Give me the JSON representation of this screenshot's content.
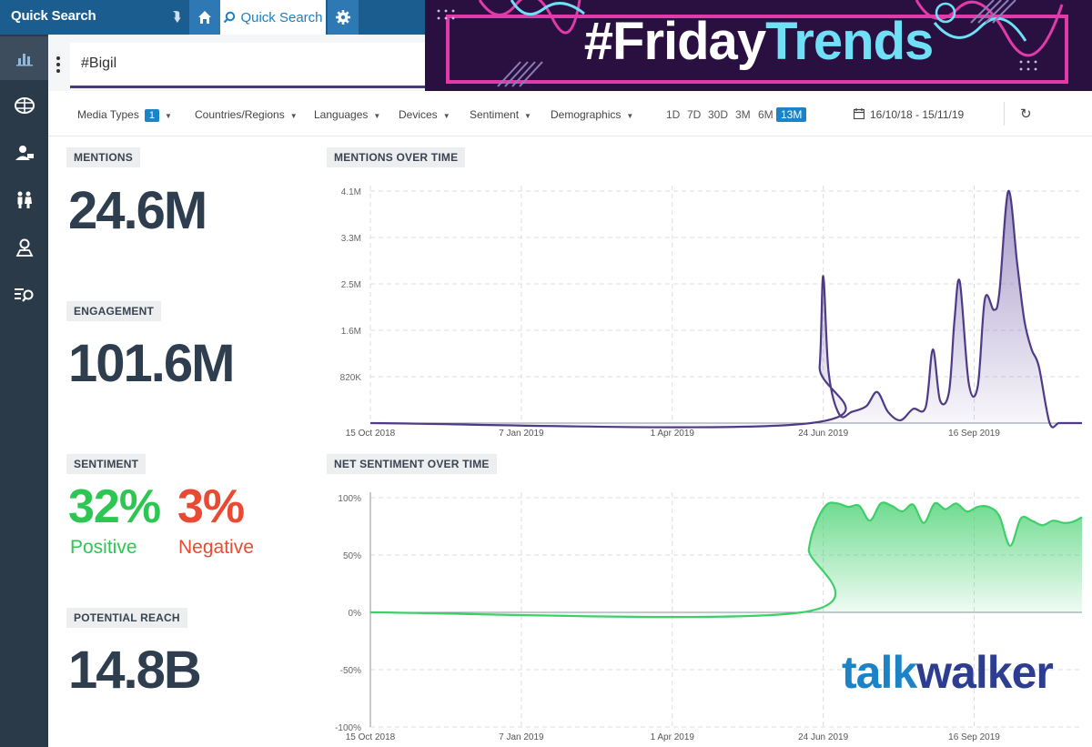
{
  "topbar": {
    "title": "Quick Search",
    "tab_quick_search": "Quick Search"
  },
  "search": {
    "query": "#Bigil"
  },
  "banner": {
    "hash": "#",
    "word1": "Friday",
    "word2": "Trends"
  },
  "filters": {
    "media_types": "Media Types",
    "media_types_count": "1",
    "countries": "Countries/Regions",
    "languages": "Languages",
    "devices": "Devices",
    "sentiment": "Sentiment",
    "demographics": "Demographics",
    "ranges": [
      "1D",
      "7D",
      "30D",
      "3M",
      "6M",
      "13M"
    ],
    "active_range": "13M",
    "date_range": "16/10/18 - 15/11/19"
  },
  "kpis": {
    "mentions_label": "MENTIONS",
    "mentions_value": "24.6M",
    "engagement_label": "ENGAGEMENT",
    "engagement_value": "101.6M",
    "sentiment_label": "SENTIMENT",
    "positive_value": "32%",
    "positive_label": "Positive",
    "negative_value": "3%",
    "negative_label": "Negative",
    "reach_label": "POTENTIAL REACH",
    "reach_value": "14.8B"
  },
  "colors": {
    "mentions_line": "#4e3a85",
    "sentiment_line": "#3fcf6a",
    "positive": "#2dc653",
    "negative": "#e84a33"
  },
  "chart_data": [
    {
      "type": "area",
      "title": "MENTIONS OVER TIME",
      "x_ticks": [
        "15 Oct 2018",
        "7 Jan 2019",
        "1 Apr 2019",
        "24 Jun 2019",
        "16 Sep 2019"
      ],
      "y_ticks": [
        "820K",
        "1.6M",
        "2.5M",
        "3.3M",
        "4.1M"
      ],
      "ylim": [
        0,
        4100000
      ],
      "x": [
        "2018-10-15",
        "2019-06-17",
        "2019-06-22",
        "2019-06-24",
        "2019-06-27",
        "2019-07-03",
        "2019-07-10",
        "2019-07-18",
        "2019-07-24",
        "2019-07-30",
        "2019-08-06",
        "2019-08-13",
        "2019-08-20",
        "2019-08-24",
        "2019-08-28",
        "2019-09-02",
        "2019-09-05",
        "2019-09-08",
        "2019-09-13",
        "2019-09-18",
        "2019-09-22",
        "2019-09-27",
        "2019-09-30",
        "2019-10-05",
        "2019-10-10",
        "2019-10-14",
        "2019-10-18",
        "2019-10-22",
        "2019-10-28",
        "2019-11-02",
        "2019-11-06",
        "2019-11-10",
        "2019-11-15"
      ],
      "series": [
        {
          "values": [
            0,
            0,
            1000000,
            2600000,
            900000,
            150000,
            200000,
            300000,
            550000,
            200000,
            50000,
            250000,
            280000,
            1300000,
            400000,
            550000,
            1800000,
            2500000,
            700000,
            650000,
            2200000,
            2000000,
            2300000,
            4100000,
            2800000,
            1800000,
            1300000,
            1000000,
            0,
            0,
            0,
            0,
            0
          ]
        }
      ]
    },
    {
      "type": "area",
      "title": "NET SENTIMENT OVER TIME",
      "x_ticks": [
        "15 Oct 2018",
        "7 Jan 2019",
        "1 Apr 2019",
        "24 Jun 2019",
        "16 Sep 2019"
      ],
      "y_ticks": [
        "100%",
        "50%",
        "0%",
        "-50%",
        "-100%"
      ],
      "ylim": [
        -100,
        100
      ],
      "x": [
        "2018-10-15",
        "2019-06-12",
        "2019-06-16",
        "2019-06-20",
        "2019-06-26",
        "2019-07-02",
        "2019-07-08",
        "2019-07-14",
        "2019-07-20",
        "2019-07-26",
        "2019-08-01",
        "2019-08-07",
        "2019-08-13",
        "2019-08-19",
        "2019-08-25",
        "2019-08-31",
        "2019-09-06",
        "2019-09-12",
        "2019-09-18",
        "2019-09-24",
        "2019-09-30",
        "2019-10-06",
        "2019-10-12",
        "2019-10-18",
        "2019-10-24",
        "2019-10-30",
        "2019-11-05",
        "2019-11-10",
        "2019-11-15"
      ],
      "series": [
        {
          "values": [
            0,
            0,
            55,
            78,
            94,
            95,
            92,
            93,
            80,
            95,
            93,
            88,
            94,
            78,
            95,
            90,
            95,
            88,
            92,
            92,
            84,
            58,
            82,
            80,
            76,
            80,
            78,
            79,
            83
          ]
        }
      ]
    }
  ],
  "watermark": {
    "part1": "talk",
    "part2": "walker"
  }
}
